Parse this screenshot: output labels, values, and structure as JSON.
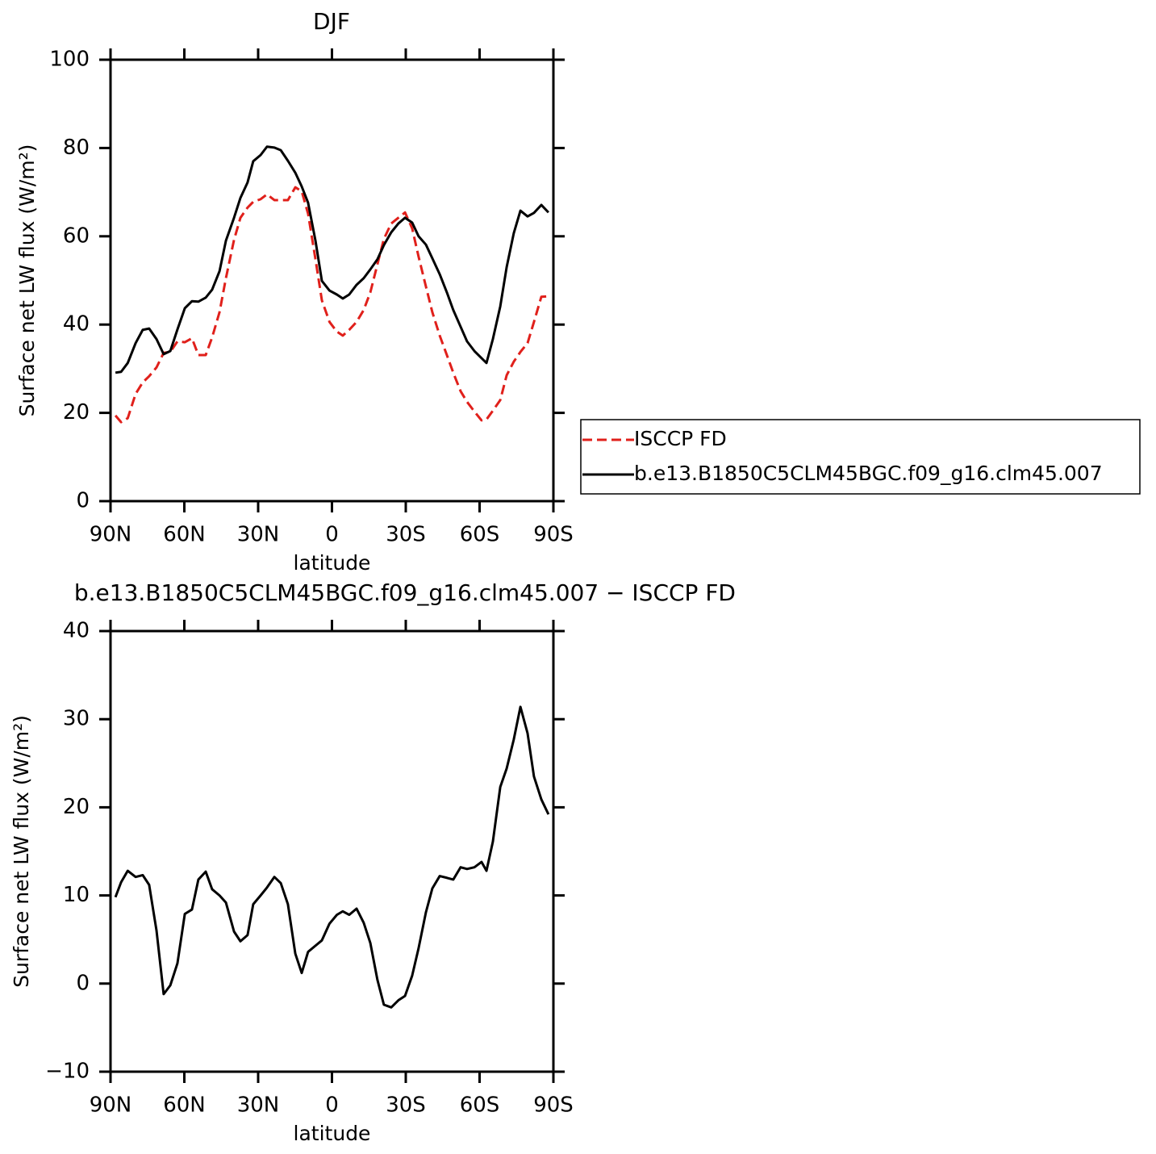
{
  "chart_data": [
    {
      "type": "line",
      "title": "DJF",
      "xlabel": "latitude",
      "ylabel": "Surface net LW flux (W/m²)",
      "legend": "right",
      "x": [
        88,
        85.7,
        83,
        79.8,
        76.9,
        74.3,
        71.3,
        68.4,
        65.7,
        62.8,
        59.8,
        56.9,
        54.3,
        51.3,
        48.7,
        45.7,
        43.1,
        39.8,
        37.2,
        34.3,
        32,
        29,
        26.4,
        23.4,
        20.8,
        17.9,
        14.9,
        12.3,
        9.7,
        6.7,
        4.1,
        1,
        -2,
        -4.4,
        -7,
        -10,
        -12.9,
        -15.6,
        -18.5,
        -21.1,
        -24.1,
        -27,
        -29.7,
        -32.6,
        -35.2,
        -38.2,
        -40.8,
        -43.8,
        -46.7,
        -49.3,
        -52.3,
        -54.9,
        -57.9,
        -60.8,
        -62.8,
        -65.4,
        -68.4,
        -71,
        -73.9,
        -76.6,
        -79.5,
        -82.1,
        -85.1,
        -88
      ],
      "series": [
        {
          "name": "ISCCP FD",
          "color": "#e0201b",
          "linestyle": "dashed",
          "values": [
            19.4,
            17.9,
            18.8,
            24.3,
            26.9,
            28.3,
            30.3,
            33.6,
            33.8,
            36.2,
            36,
            36.9,
            33.1,
            33.1,
            37.1,
            42.8,
            50.5,
            59.2,
            64.2,
            66.5,
            67.8,
            68.4,
            69.5,
            68.2,
            68.2,
            68.2,
            71.1,
            70.2,
            65.1,
            54.8,
            45.5,
            40.6,
            38.4,
            37.5,
            38.8,
            40.6,
            43.3,
            47.3,
            53.7,
            59.4,
            62.9,
            64.2,
            65.4,
            61.8,
            55.4,
            48.6,
            42.8,
            37.5,
            33.1,
            29.1,
            24.9,
            22.5,
            20.3,
            18.3,
            18.5,
            20.5,
            22.9,
            28.5,
            31.6,
            33.8,
            35.8,
            40.6,
            46.3,
            46.4
          ]
        },
        {
          "name": "b.e13.B1850C5CLM45BGC.f09_g16.clm45.007",
          "color": "#000000",
          "linestyle": "solid",
          "values": [
            29.1,
            29.3,
            31.3,
            35.8,
            38.8,
            39.1,
            36.7,
            33.3,
            34,
            38.9,
            43.7,
            45.3,
            45.2,
            46.1,
            47.9,
            52.1,
            59,
            64.2,
            68.7,
            72.2,
            77,
            78.4,
            80.3,
            80.1,
            79.5,
            77.1,
            74.4,
            71.3,
            67.6,
            59,
            49.9,
            47.7,
            46.8,
            45.9,
            46.8,
            49,
            50.5,
            52.5,
            54.8,
            58,
            60.9,
            62.9,
            64.2,
            63.1,
            60,
            58.1,
            55,
            51.4,
            47.3,
            43.3,
            39.5,
            36.2,
            34,
            32.4,
            31.3,
            36.7,
            44.1,
            53,
            60.7,
            65.8,
            64.5,
            65.3,
            67.1,
            65.4
          ]
        }
      ],
      "xlim": [
        90,
        -90
      ],
      "xticks": [
        {
          "value": 90,
          "label": "90N"
        },
        {
          "value": 60,
          "label": "60N"
        },
        {
          "value": 30,
          "label": "30N"
        },
        0,
        {
          "value": -30,
          "label": "30S"
        },
        {
          "value": -60,
          "label": "60S"
        },
        {
          "value": -90,
          "label": "90S"
        }
      ],
      "ylim": [
        0,
        100
      ],
      "yticks": [
        0,
        20,
        40,
        60,
        80,
        100
      ],
      "grid": false
    },
    {
      "type": "line",
      "title": "b.e13.B1850C5CLM45BGC.f09_g16.clm45.007 − ISCCP FD",
      "xlabel": "latitude",
      "ylabel": "Surface net LW flux (W/m²)",
      "x": [
        88,
        85.7,
        83,
        79.8,
        76.9,
        74.3,
        71.3,
        68.4,
        65.7,
        62.8,
        59.8,
        56.9,
        54.3,
        51.3,
        48.7,
        45.7,
        43.1,
        39.8,
        37.2,
        34.3,
        32,
        29,
        26.4,
        23.4,
        20.8,
        17.9,
        14.9,
        12.3,
        9.7,
        6.7,
        4.1,
        1,
        -2,
        -4.4,
        -7,
        -10,
        -12.9,
        -15.6,
        -18.5,
        -21.1,
        -24.1,
        -27,
        -29.7,
        -32.6,
        -35.2,
        -38.2,
        -40.8,
        -43.8,
        -46.7,
        -49.3,
        -52.3,
        -54.9,
        -57.9,
        -60.8,
        -62.8,
        -65.4,
        -68.4,
        -71,
        -73.9,
        -76.6,
        -79.5,
        -82.1,
        -85.1,
        -88
      ],
      "series": [
        {
          "color": "#000000",
          "linestyle": "solid",
          "values": [
            9.8,
            11.5,
            12.8,
            12.1,
            12.3,
            11.2,
            6.0,
            -1.2,
            -0.2,
            2.3,
            7.9,
            8.4,
            11.8,
            12.7,
            10.7,
            10.0,
            9.2,
            5.9,
            4.8,
            5.5,
            9.0,
            10.0,
            10.9,
            12.1,
            11.4,
            9.0,
            3.4,
            1.2,
            3.6,
            4.3,
            4.9,
            6.8,
            7.8,
            8.2,
            7.8,
            8.5,
            6.9,
            4.6,
            0.4,
            -2.4,
            -2.7,
            -1.9,
            -1.4,
            0.9,
            4.0,
            8.1,
            10.8,
            12.2,
            12.0,
            11.8,
            13.2,
            13.0,
            13.2,
            13.8,
            12.8,
            16.1,
            22.3,
            24.4,
            27.7,
            31.4,
            28.4,
            23.5,
            20.9,
            19.2
          ]
        }
      ],
      "xlim": [
        90,
        -90
      ],
      "xticks": [
        {
          "value": 90,
          "label": "90N"
        },
        {
          "value": 60,
          "label": "60N"
        },
        {
          "value": 30,
          "label": "30N"
        },
        0,
        {
          "value": -30,
          "label": "30S"
        },
        {
          "value": -60,
          "label": "60S"
        },
        {
          "value": -90,
          "label": "90S"
        }
      ],
      "ylim": [
        -10,
        40
      ],
      "yticks": [
        {
          "value": -10,
          "label": "−10"
        },
        0,
        10,
        20,
        30,
        40
      ],
      "grid": false
    }
  ]
}
